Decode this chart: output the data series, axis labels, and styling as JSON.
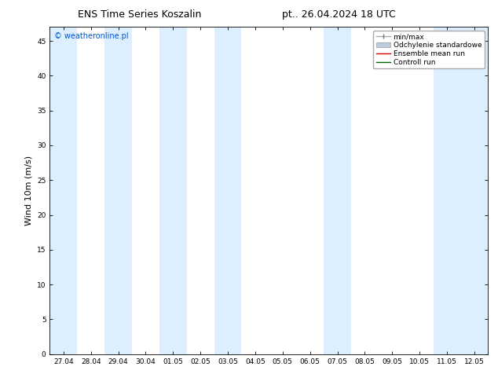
{
  "title_left": "ENS Time Series Koszalin",
  "title_right": "pt.. 26.04.2024 18 UTC",
  "ylabel": "Wind 10m (m/s)",
  "watermark": "© weatheronline.pl",
  "watermark_color": "#0055cc",
  "ylim": [
    0,
    47
  ],
  "yticks": [
    0,
    5,
    10,
    15,
    20,
    25,
    30,
    35,
    40,
    45
  ],
  "xtick_labels": [
    "27.04",
    "28.04",
    "29.04",
    "30.04",
    "01.05",
    "02.05",
    "03.05",
    "04.05",
    "05.05",
    "06.05",
    "07.05",
    "08.05",
    "09.05",
    "10.05",
    "11.05",
    "12.05"
  ],
  "bg_color": "#ffffff",
  "plot_bg_color": "#ffffff",
  "shaded_band_color": "#ddeeff",
  "shaded_columns": [
    0,
    2,
    4,
    6,
    10,
    14,
    15
  ],
  "legend_labels": [
    "min/max",
    "Odchylenie standardowe",
    "Ensemble mean run",
    "Controll run"
  ],
  "title_fontsize": 9,
  "tick_fontsize": 6.5,
  "ylabel_fontsize": 8,
  "watermark_fontsize": 7,
  "legend_fontsize": 6.5
}
